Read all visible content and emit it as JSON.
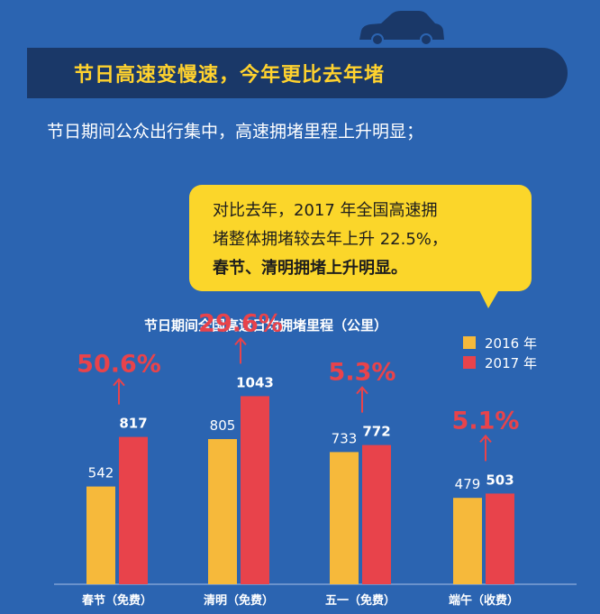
{
  "header": {
    "title": "节日高速变慢速，今年更比去年堵",
    "subtitle": "节日期间公众出行集中，高速拥堵里程上升明显；"
  },
  "callout": {
    "line1": "对比去年，2017  年全国高速拥",
    "line2": "堵整体拥堵较去年上升 22.5%，",
    "line3": "春节、清明拥堵上升明显。"
  },
  "colors": {
    "background": "#2b64b1",
    "banner": "#1a3868",
    "accent_yellow": "#ffd22e",
    "callout": "#fbd62a",
    "bar_2016": "#f6b93b",
    "bar_2017": "#e8434b",
    "percent_text": "#e8434b"
  },
  "chart_data": {
    "type": "bar",
    "title": "节日期间全国高速日均拥堵里程（公里）",
    "categories": [
      "春节（免费）",
      "清明（免费）",
      "五一（免费）",
      "端午（收费）"
    ],
    "series": [
      {
        "name": "2016 年",
        "values": [
          542,
          805,
          733,
          479
        ]
      },
      {
        "name": "2017 年",
        "values": [
          817,
          1043,
          772,
          503
        ]
      }
    ],
    "value_labels": [
      [
        "542",
        "805",
        "733",
        "479"
      ],
      [
        "817",
        "1043",
        "772",
        "503"
      ]
    ],
    "growth_labels": [
      "50.6%",
      "29.6%",
      "5.3%",
      "5.1%"
    ],
    "xlabel": "",
    "ylabel": "",
    "ylim": [
      0,
      1300
    ],
    "grid": false,
    "legend_position": "top-right"
  }
}
